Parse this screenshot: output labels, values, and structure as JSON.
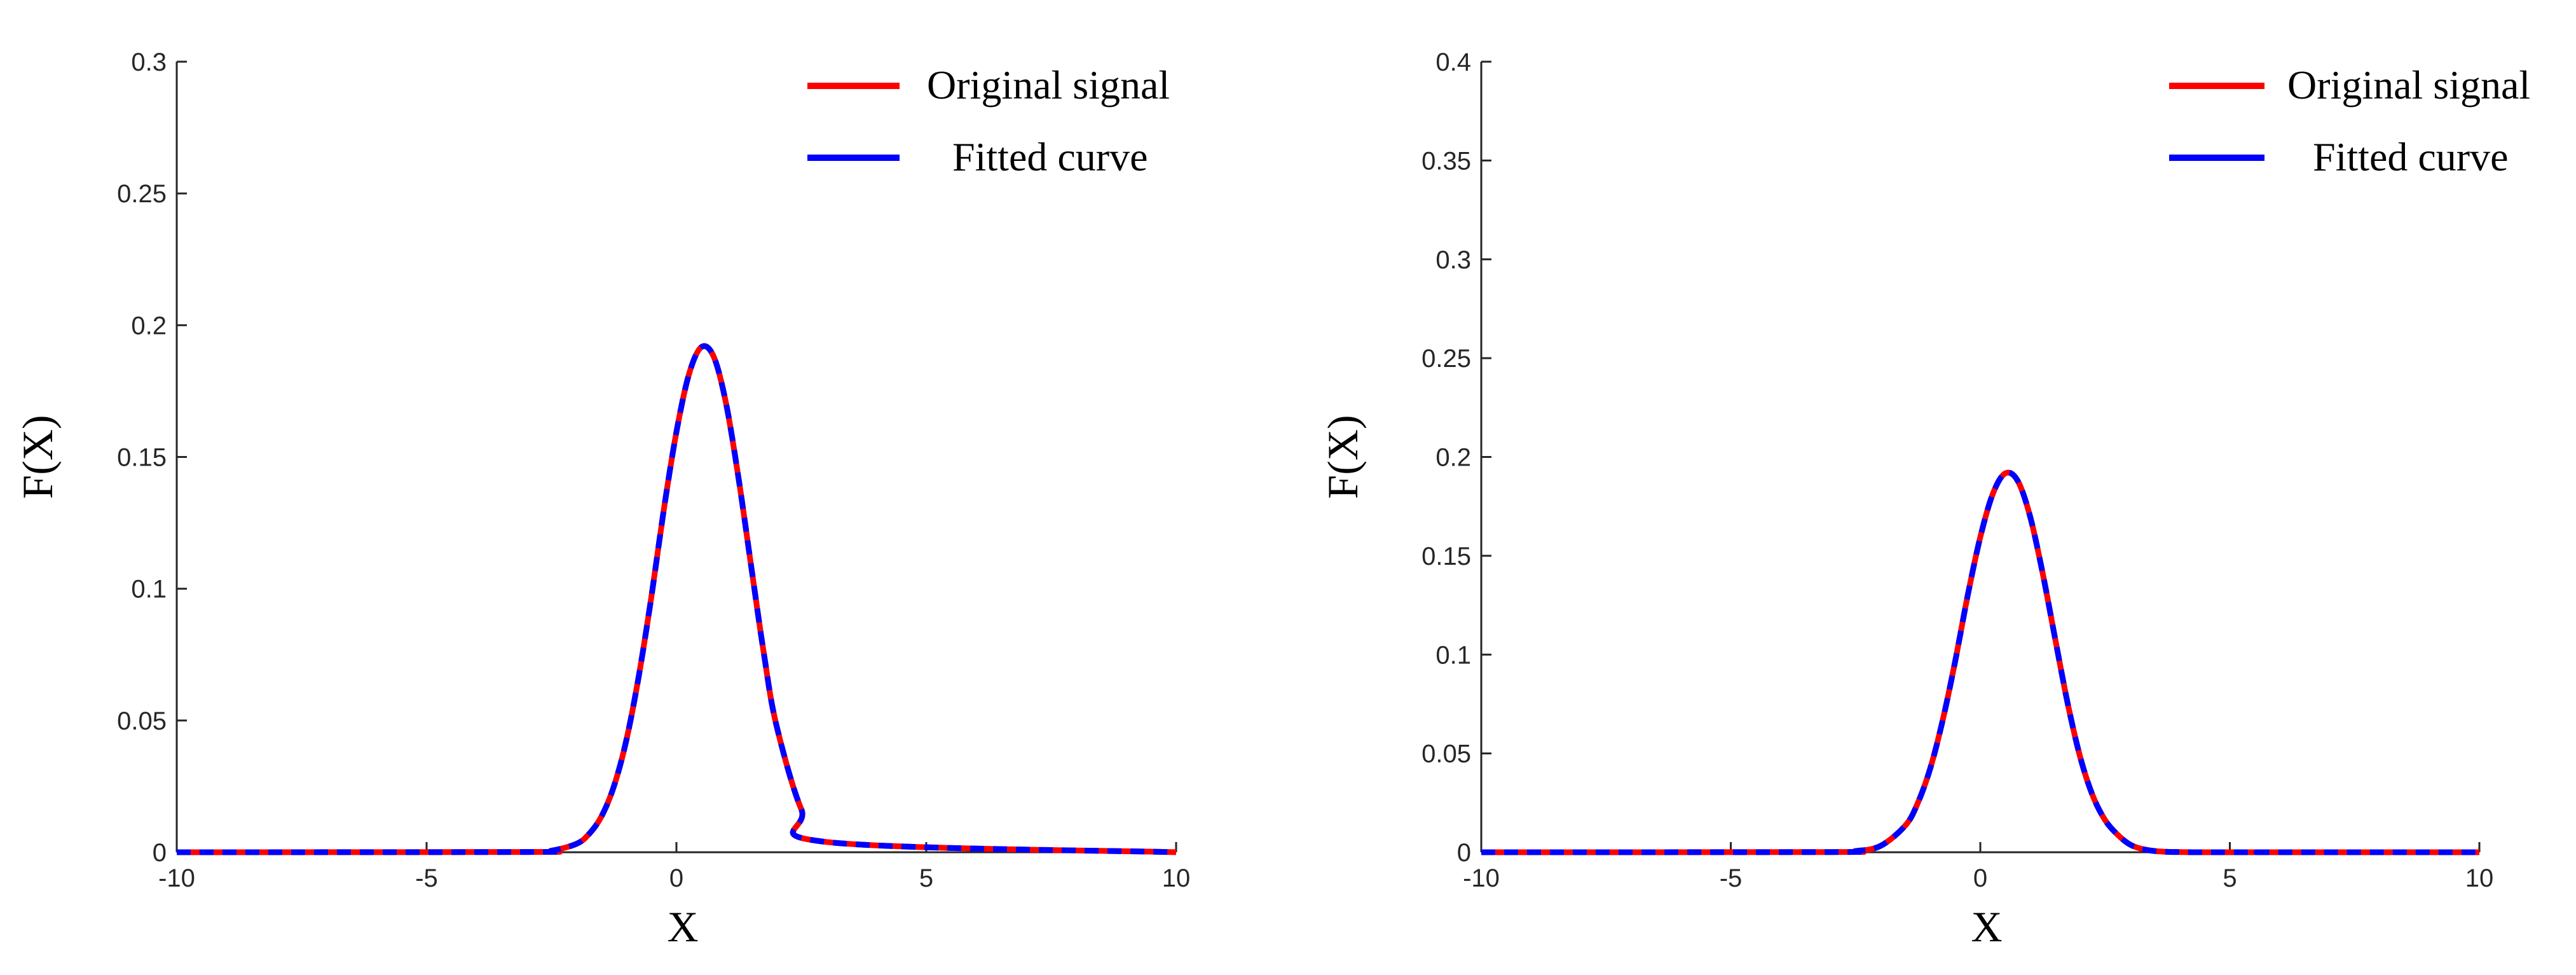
{
  "chart_data": [
    {
      "type": "line",
      "title": "",
      "xlabel": "X",
      "ylabel": "F(X)",
      "xlim": [
        -10,
        10
      ],
      "ylim": [
        0,
        0.3
      ],
      "xticks": [
        -10,
        -5,
        0,
        5,
        10
      ],
      "xtick_labels": [
        "-10",
        "-5",
        "0",
        "5",
        "10"
      ],
      "yticks": [
        0,
        0.05,
        0.1,
        0.15,
        0.2,
        0.25,
        0.3
      ],
      "ytick_labels": [
        "0",
        "0.05",
        "0.1",
        "0.15",
        "0.2",
        "0.25",
        "0.3"
      ],
      "grid": false,
      "legend_position": "top-right",
      "series": [
        {
          "name": "Original signal",
          "color": "#ff0000",
          "style": "solid",
          "x": [
            -10,
            -3,
            -2.5,
            -2,
            -1.75,
            -1.5,
            -1.25,
            -1,
            -0.75,
            -0.5,
            -0.25,
            0,
            0.25,
            0.5,
            0.75,
            1,
            1.25,
            1.5,
            1.75,
            2,
            2.5,
            3,
            10
          ],
          "y": [
            0,
            0.0001,
            0.0006,
            0.0032,
            0.0069,
            0.0136,
            0.0251,
            0.0427,
            0.0672,
            0.0971,
            0.1303,
            0.1595,
            0.1813,
            0.1917,
            0.1879,
            0.1697,
            0.1411,
            0.108,
            0.0754,
            0.0483,
            0.0163,
            0.0039,
            0
          ]
        },
        {
          "name": "Fitted curve",
          "color": "#0000ff",
          "style": "dashed",
          "x": [
            -10,
            -3,
            -2.5,
            -2,
            -1.75,
            -1.5,
            -1.25,
            -1,
            -0.75,
            -0.5,
            -0.25,
            0,
            0.25,
            0.5,
            0.75,
            1,
            1.25,
            1.5,
            1.75,
            2,
            2.5,
            3,
            10
          ],
          "y": [
            0,
            0.0001,
            0.0006,
            0.0032,
            0.0069,
            0.0136,
            0.0251,
            0.0427,
            0.0672,
            0.0971,
            0.1303,
            0.1595,
            0.1813,
            0.1917,
            0.1879,
            0.1697,
            0.1411,
            0.108,
            0.0754,
            0.0483,
            0.0163,
            0.0039,
            0
          ]
        }
      ]
    },
    {
      "type": "line",
      "title": "",
      "xlabel": "X",
      "ylabel": "F(X)",
      "xlim": [
        -10,
        10
      ],
      "ylim": [
        0,
        0.4
      ],
      "xticks": [
        -10,
        -5,
        0,
        5,
        10
      ],
      "xtick_labels": [
        "-10",
        "-5",
        "0",
        "5",
        "10"
      ],
      "yticks": [
        0,
        0.05,
        0.1,
        0.15,
        0.2,
        0.25,
        0.3,
        0.35,
        0.4
      ],
      "ytick_labels": [
        "0",
        "0.05",
        "0.1",
        "0.15",
        "0.2",
        "0.25",
        "0.3",
        "0.35",
        "0.4"
      ],
      "grid": false,
      "legend_position": "top-right",
      "series": [
        {
          "name": "Original signal",
          "color": "#ff0000",
          "style": "solid",
          "x": [
            -10,
            -3,
            -2.5,
            -2,
            -1.5,
            -1.25,
            -1,
            -0.75,
            -0.5,
            -0.25,
            0,
            0.25,
            0.5,
            0.75,
            1,
            1.25,
            1.5,
            1.75,
            2,
            2.25,
            2.5,
            2.75,
            3,
            3.25,
            3.5,
            3.75,
            4,
            4.25,
            4.5,
            4.75,
            5,
            5.5,
            6,
            10
          ],
          "y": [
            0,
            0.0001,
            0.0006,
            0.0032,
            0.0136,
            0.0251,
            0.0427,
            0.0672,
            0.0971,
            0.1303,
            0.1595,
            0.1813,
            0.1917,
            0.1879,
            0.1697,
            0.1411,
            0.108,
            0.0754,
            0.0483,
            0.0288,
            0.0163,
            0.0089,
            0.0039,
            0.0016,
            0.0006,
            0.0002,
            0.0001,
            0,
            0,
            0,
            0,
            0,
            0,
            0
          ]
        },
        {
          "name": "Fitted curve",
          "color": "#0000ff",
          "style": "dashed",
          "x": [
            -10,
            -3,
            -2.5,
            -2,
            -1.5,
            -1.25,
            -1,
            -0.75,
            -0.5,
            -0.25,
            0,
            0.25,
            0.5,
            0.75,
            1,
            1.25,
            1.5,
            1.75,
            2,
            2.25,
            2.5,
            2.75,
            3,
            3.25,
            3.5,
            3.75,
            4,
            4.25,
            4.5,
            4.75,
            5,
            5.5,
            6,
            10
          ],
          "y": [
            0,
            0.0001,
            0.0006,
            0.0032,
            0.0136,
            0.0251,
            0.0427,
            0.0672,
            0.0971,
            0.1303,
            0.1595,
            0.1813,
            0.1917,
            0.1879,
            0.1697,
            0.1411,
            0.108,
            0.0754,
            0.0483,
            0.0288,
            0.0163,
            0.0089,
            0.0039,
            0.0016,
            0.0006,
            0.0002,
            0.0001,
            0,
            0,
            0,
            0,
            0,
            0,
            0
          ]
        }
      ]
    }
  ]
}
